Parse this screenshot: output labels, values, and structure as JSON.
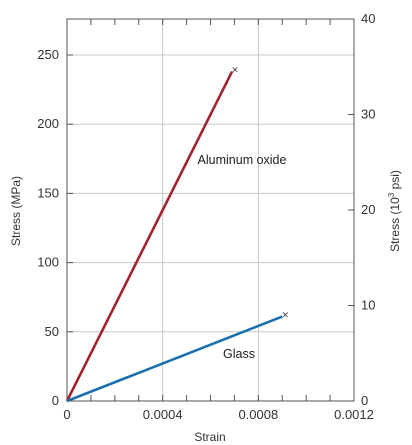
{
  "chart_data": {
    "type": "line",
    "title": "",
    "xlabel": "Strain",
    "ylabel": "Stress (MPa)",
    "y2label": {
      "pre": "Stress (10",
      "sup": "3",
      "post": " psi)"
    },
    "xlim": [
      0,
      0.0012
    ],
    "ylim": [
      0,
      276
    ],
    "y2lim": [
      0,
      40
    ],
    "x_ticks": [
      0,
      0.0004,
      0.0008,
      0.0012
    ],
    "x_tick_labels": [
      "0",
      "0.0004",
      "0.0008",
      "0.0012"
    ],
    "x_minor_step": 0.0001,
    "y_ticks": [
      0,
      50,
      100,
      150,
      200,
      250
    ],
    "y_tick_labels": [
      "0",
      "50",
      "100",
      "150",
      "200",
      "250"
    ],
    "y2_ticks": [
      0,
      10,
      20,
      30,
      40
    ],
    "y2_tick_labels": [
      "0",
      "10",
      "20",
      "30",
      "40"
    ],
    "grid": true,
    "series": [
      {
        "name": "Aluminum oxide",
        "color": "#a0252b",
        "x": [
          0,
          0.00069
        ],
        "y": [
          0,
          238
        ],
        "fracture_marker": "×"
      },
      {
        "name": "Glass",
        "color": "#1a6fae",
        "x": [
          0,
          0.0009
        ],
        "y": [
          0,
          61
        ],
        "fracture_marker": "×"
      }
    ]
  }
}
